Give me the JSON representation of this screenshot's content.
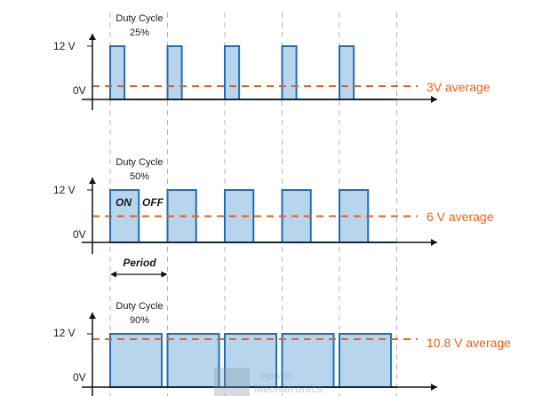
{
  "colors": {
    "pulse_fill": "#b9d5ee",
    "pulse_stroke": "#1f6fb2",
    "average": "#e8601c",
    "axis": "#111111",
    "grid": "#b5b5b5"
  },
  "panels": [
    {
      "duty_cycle_title": "Duty Cycle",
      "duty_cycle_value": "25%",
      "duty_fraction": 0.25,
      "high_label": "12 V",
      "low_label": "0V",
      "average_label": "3V average",
      "average_fraction": 0.25
    },
    {
      "duty_cycle_title": "Duty Cycle",
      "duty_cycle_value": "50%",
      "duty_fraction": 0.5,
      "high_label": "12 V",
      "low_label": "0V",
      "average_label": "6 V average",
      "average_fraction": 0.5,
      "on_label": "ON",
      "off_label": "OFF",
      "period_label": "Period"
    },
    {
      "duty_cycle_title": "Duty Cycle",
      "duty_cycle_value": "90%",
      "duty_fraction": 0.9,
      "high_label": "12 V",
      "low_label": "0V",
      "average_label": "10.8 V average",
      "average_fraction": 0.9
    }
  ],
  "pulse_count": 5,
  "watermark": {
    "line1": "How To",
    "line2": "Mechatronics"
  }
}
